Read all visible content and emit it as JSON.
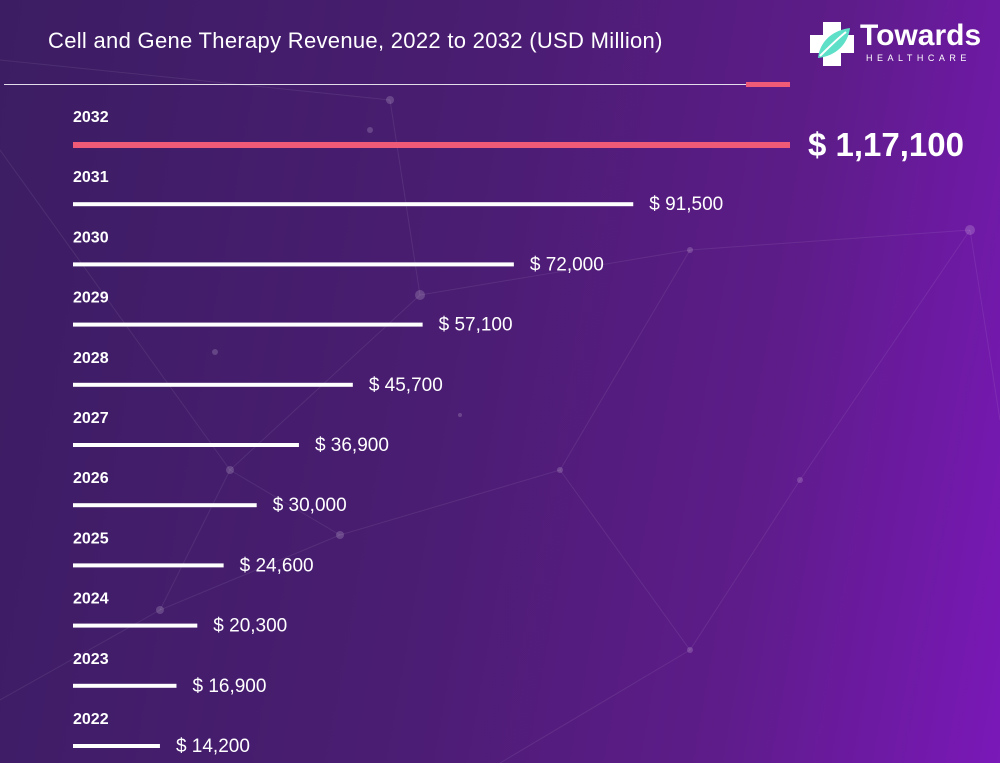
{
  "header": {
    "title": "Cell and Gene Therapy Revenue, 2022 to 2032 (USD Million)",
    "logo_word": "Towards",
    "logo_sub": "HEALTHCARE"
  },
  "colors": {
    "bar": "#ffffff",
    "highlight": "#ef5a77",
    "accent_teal": "#5ee0c8"
  },
  "chart_data": {
    "type": "bar",
    "orientation": "horizontal",
    "title": "Cell and Gene Therapy Revenue, 2022 to 2032 (USD Million)",
    "xlabel": "",
    "ylabel": "",
    "categories": [
      "2032",
      "2031",
      "2030",
      "2029",
      "2028",
      "2027",
      "2026",
      "2025",
      "2024",
      "2023",
      "2022"
    ],
    "values": [
      117100,
      91500,
      72000,
      57100,
      45700,
      36900,
      30000,
      24600,
      20300,
      16900,
      14200
    ],
    "value_labels": [
      "$ 1,17,100",
      "$ 91,500",
      "$ 72,000",
      "$ 57,100",
      "$ 45,700",
      "$ 36,900",
      "$ 30,000",
      "$ 24,600",
      "$ 20,300",
      "$ 16,900",
      "$ 14,200"
    ],
    "highlight_category": "2032",
    "grid": false,
    "legend": "none"
  }
}
